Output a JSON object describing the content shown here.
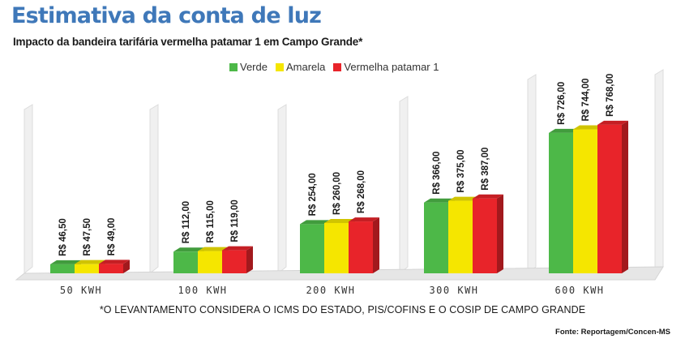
{
  "header": {
    "title": "Estimativa da conta de luz",
    "subtitle": "Impacto da bandeira tarifária vermelha patamar 1 em Campo Grande*"
  },
  "footer": {
    "note": "*O LEVANTAMENTO CONSIDERA O ICMS DO ESTADO, PIS/COFINS E O COSIP DE CAMPO GRANDE",
    "source": "Fonte: Reportagem/Concen-MS"
  },
  "chart_data": {
    "type": "bar",
    "title": "Estimativa da conta de luz",
    "subtitle": "Impacto da bandeira tarifária vermelha patamar 1 em Campo Grande*",
    "categories": [
      "50 KWH",
      "100 KWH",
      "200 KWH",
      "300 KWH",
      "600 KWH"
    ],
    "series": [
      {
        "name": "Verde",
        "color": "#4db848",
        "values": [
          46.5,
          112,
          254,
          366,
          726
        ],
        "labels": [
          "R$ 46,50",
          "R$ 112,00",
          "R$ 254,00",
          "R$ 366,00",
          "R$ 726,00"
        ]
      },
      {
        "name": "Amarela",
        "color": "#f5e600",
        "values": [
          47.5,
          115,
          260,
          375,
          744
        ],
        "labels": [
          "R$ 47,50",
          "R$ 115,00",
          "R$ 260,00",
          "R$ 375,00",
          "R$ 744,00"
        ]
      },
      {
        "name": "Vermelha patamar 1",
        "color": "#e8242a",
        "values": [
          49,
          119,
          268,
          387,
          768
        ],
        "labels": [
          "R$ 49,00",
          "R$ 119,00",
          "R$ 268,00",
          "R$ 387,00",
          "R$ 768,00"
        ]
      }
    ],
    "legend_position": "top-center",
    "grid": false
  }
}
